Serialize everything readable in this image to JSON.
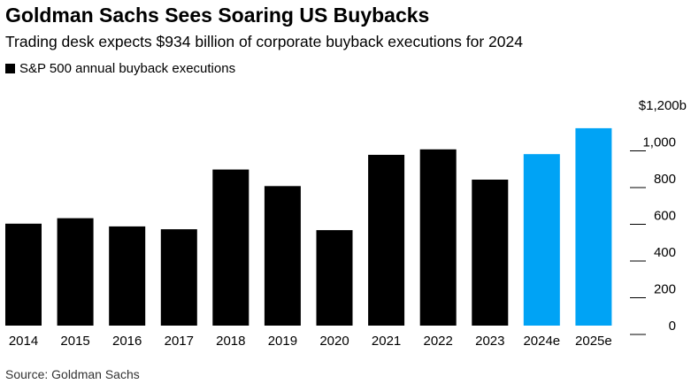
{
  "chart_data": {
    "type": "bar",
    "title": "Goldman Sachs Sees Soaring US Buybacks",
    "subtitle": "Trading desk expects $934 billion of corporate buyback executions for 2024",
    "legend": [
      {
        "name": "S&P 500 annual buyback executions",
        "color": "#000000"
      }
    ],
    "categories": [
      "2014",
      "2015",
      "2016",
      "2017",
      "2018",
      "2019",
      "2020",
      "2021",
      "2022",
      "2023",
      "2024e",
      "2025e"
    ],
    "values": [
      555,
      585,
      540,
      525,
      850,
      760,
      520,
      930,
      960,
      795,
      934,
      1075
    ],
    "colors": [
      "#000000",
      "#000000",
      "#000000",
      "#000000",
      "#000000",
      "#000000",
      "#000000",
      "#000000",
      "#000000",
      "#000000",
      "#00a3f5",
      "#00a3f5"
    ],
    "ylim": [
      0,
      1200
    ],
    "yticks": [
      0,
      200,
      400,
      600,
      800,
      1000,
      1200
    ],
    "ytick_labels": [
      "0",
      "200",
      "400",
      "600",
      "800",
      "1,000",
      "$1,200b"
    ],
    "y_axis_position": "right",
    "grid": false,
    "source": "Source: Goldman Sachs"
  }
}
